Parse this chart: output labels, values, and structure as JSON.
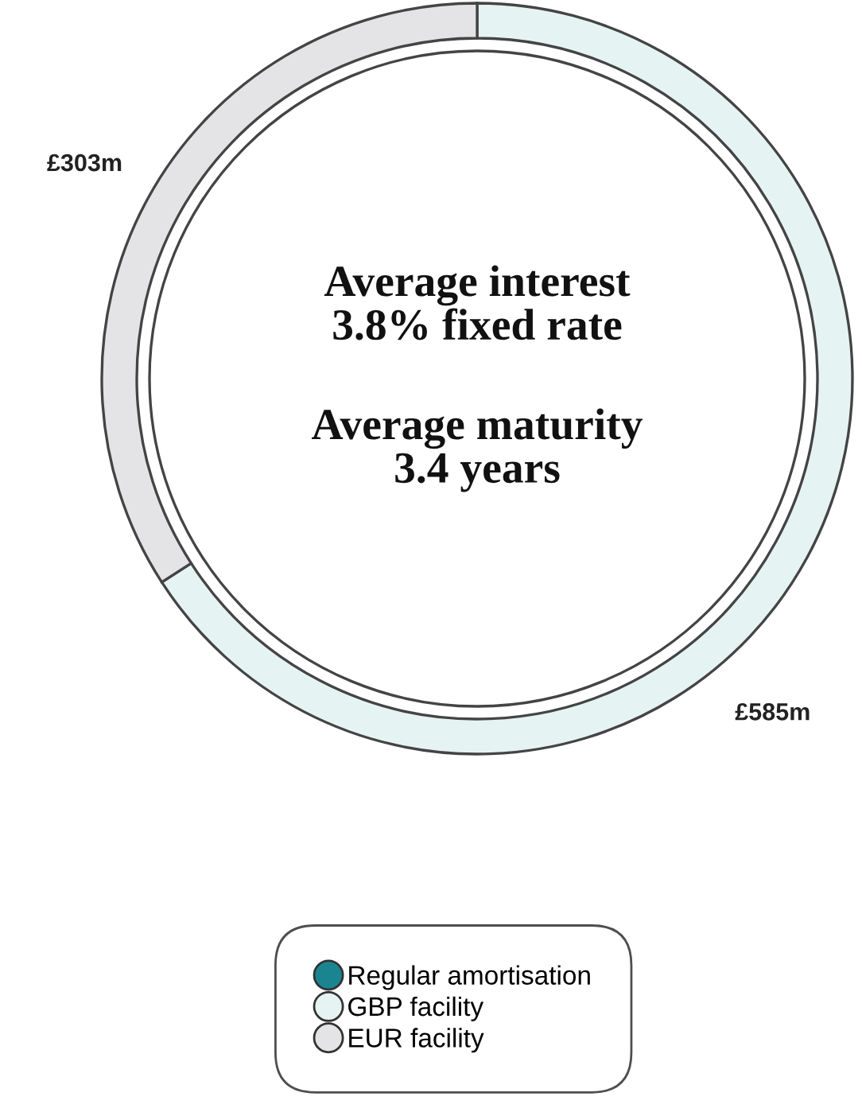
{
  "chart_data": {
    "type": "donut",
    "categories": [
      "Regular amortisation",
      "GBP facility",
      "EUR facility"
    ],
    "values": [
      0,
      585,
      303
    ],
    "colors": [
      "#1a8591",
      "#e6f3f3",
      "#e4e4e6"
    ],
    "value_labels": [
      null,
      "£585m",
      "£303m"
    ],
    "annotations": [
      "Average interest\n3.8% fixed rate",
      "Average maturity\n3.4 years"
    ],
    "legend": "bottom"
  }
}
